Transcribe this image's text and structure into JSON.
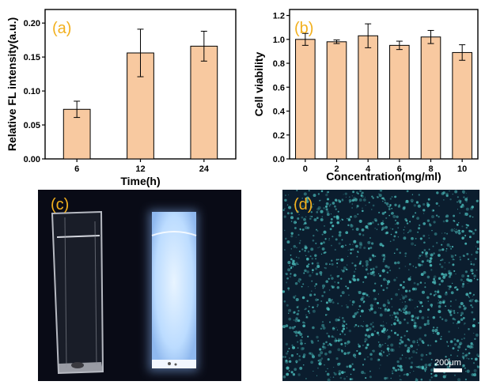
{
  "colors": {
    "bar_fill": "#f8c9a0",
    "bar_stroke": "#000000",
    "panel_label": "#f2b01e",
    "photo_background": "#090b16",
    "glow_cuvette": "#dceeff",
    "micrograph_background": "#0b1d2e",
    "micrograph_speckle": "#4fc7c5"
  },
  "panels": {
    "a": {
      "label": "(a)"
    },
    "b": {
      "label": "(b)"
    },
    "c": {
      "label": "(c)"
    },
    "d": {
      "label": "(d)",
      "scale_bar": "200μm"
    }
  },
  "chart_data": [
    {
      "panel": "(a)",
      "type": "bar",
      "xlabel": "Time(h)",
      "ylabel": "Relative FL intensity(a.u.)",
      "categories": [
        "6",
        "12",
        "24"
      ],
      "values": [
        0.073,
        0.156,
        0.166
      ],
      "errors": [
        0.012,
        0.035,
        0.022
      ],
      "ylim": [
        0,
        0.22
      ],
      "yticks": [
        "0.00",
        "0.05",
        "0.10",
        "0.15",
        "0.20"
      ],
      "grid": false
    },
    {
      "panel": "(b)",
      "type": "bar",
      "xlabel": "Concentration(mg/ml)",
      "ylabel": "Cell viability",
      "categories": [
        "0",
        "2",
        "4",
        "6",
        "8",
        "10"
      ],
      "values": [
        1.0,
        0.98,
        1.03,
        0.95,
        1.02,
        0.89
      ],
      "errors": [
        0.05,
        0.015,
        0.1,
        0.035,
        0.055,
        0.065
      ],
      "ylim": [
        0,
        1.25
      ],
      "yticks": [
        "0.0",
        "0.2",
        "0.4",
        "0.6",
        "0.8",
        "1.0",
        "1.2"
      ],
      "grid": false
    }
  ]
}
